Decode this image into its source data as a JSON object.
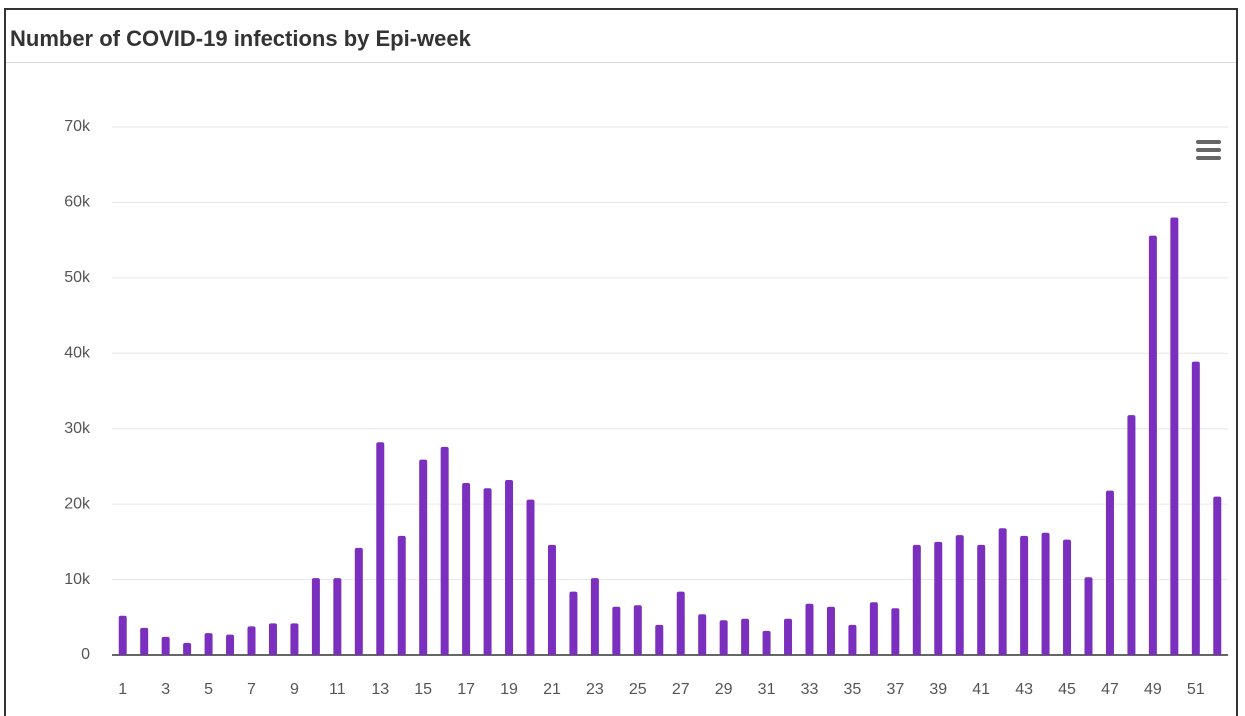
{
  "chart_data": {
    "type": "bar",
    "title": "Number of COVID-19 infections by Epi-week",
    "categories": [
      1,
      null,
      3,
      null,
      5,
      null,
      7,
      null,
      9,
      null,
      11,
      null,
      13,
      null,
      15,
      null,
      17,
      null,
      19,
      null,
      21,
      null,
      23,
      null,
      25,
      null,
      27,
      null,
      29,
      null,
      31,
      null,
      33,
      null,
      35,
      null,
      37,
      null,
      39,
      null,
      41,
      null,
      43,
      null,
      45,
      null,
      47,
      null,
      49,
      null,
      51,
      null
    ],
    "values": [
      5200,
      3600,
      2400,
      1600,
      2900,
      2700,
      3800,
      4200,
      4200,
      10200,
      10200,
      14200,
      28200,
      15800,
      25900,
      27600,
      22800,
      22100,
      23200,
      20600,
      14600,
      8400,
      10200,
      6400,
      6600,
      4000,
      8400,
      5400,
      4600,
      4800,
      3200,
      4800,
      6800,
      6400,
      4000,
      7000,
      6200,
      14600,
      15000,
      15900,
      14600,
      16800,
      15800,
      16200,
      15300,
      10300,
      21800,
      31800,
      55600,
      58000,
      38900,
      21000
    ],
    "color": "#7b2fbe",
    "ylim": [
      0,
      70000
    ],
    "yticks": [
      0,
      {
        "value": 10000,
        "label": "10k"
      },
      {
        "value": 20000,
        "label": "20k"
      },
      {
        "value": 30000,
        "label": "30k"
      },
      {
        "value": 40000,
        "label": "40k"
      },
      {
        "value": 50000,
        "label": "50k"
      },
      {
        "value": 60000,
        "label": "60k"
      },
      {
        "value": 70000,
        "label": "70k"
      }
    ],
    "grid": true
  }
}
